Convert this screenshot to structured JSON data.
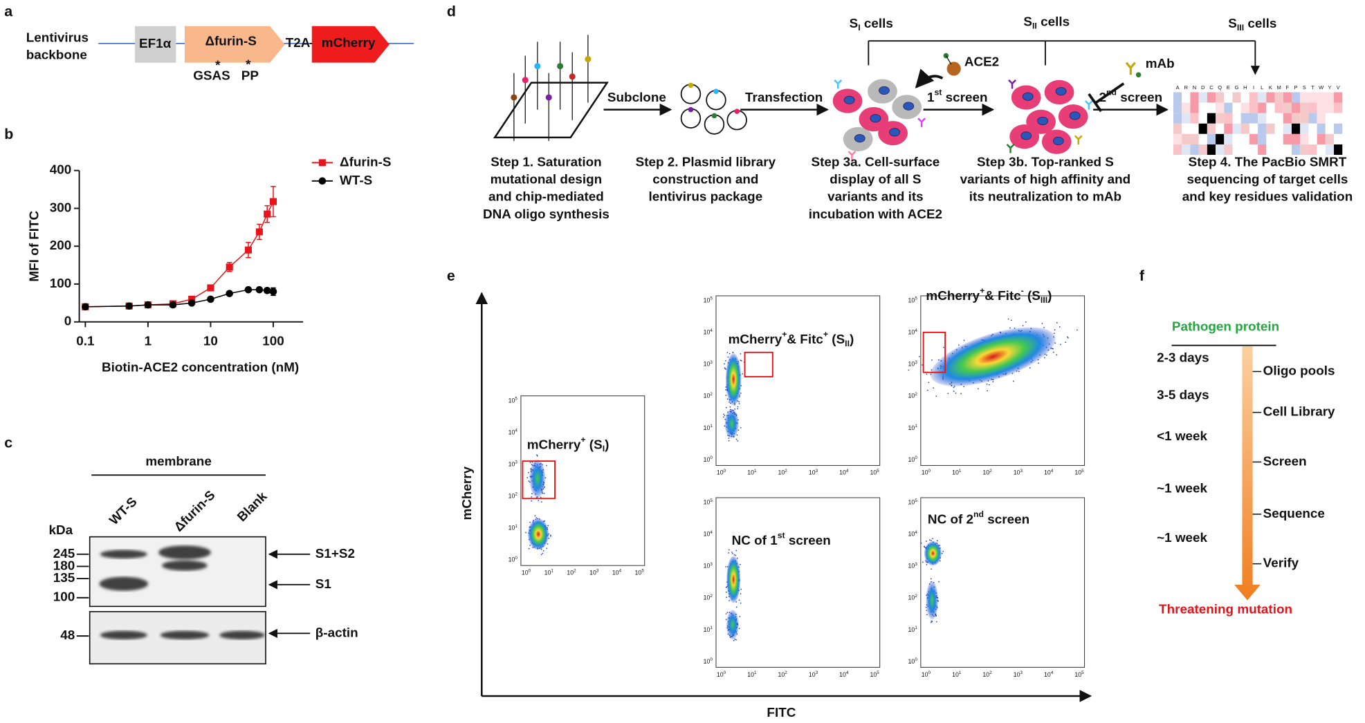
{
  "panel_labels": [
    "a",
    "b",
    "c",
    "d",
    "e",
    "f"
  ],
  "a": {
    "backbone": [
      "Lentivirus",
      "backbone"
    ],
    "ef1a": "EF1α",
    "furin": "Δfurin-S",
    "t2a": "T2A",
    "mcherry": "mCherry",
    "sites": [
      "GSAS",
      "PP"
    ],
    "star": "*"
  },
  "chart_data": {
    "type": "line",
    "xlabel": "Biotin-ACE2 concentration (nM)",
    "ylabel": "MFI of FITC",
    "x": [
      0.1,
      0.5,
      1,
      2.5,
      5,
      10,
      20,
      40,
      60,
      80,
      100
    ],
    "series": [
      {
        "name": "Δfurin-S",
        "color": "#e8141b",
        "marker": "square",
        "values": [
          40,
          42,
          45,
          48,
          60,
          90,
          145,
          190,
          238,
          285,
          318
        ],
        "errors": [
          3,
          3,
          3,
          3,
          4,
          6,
          12,
          20,
          20,
          22,
          40
        ]
      },
      {
        "name": "WT-S",
        "color": "#000000",
        "marker": "circle",
        "values": [
          40,
          42,
          45,
          45,
          50,
          60,
          75,
          85,
          85,
          83,
          80
        ],
        "errors": [
          3,
          3,
          3,
          3,
          3,
          4,
          5,
          5,
          5,
          6,
          10
        ]
      }
    ],
    "xlim": [
      0.08,
      300
    ],
    "ylim": [
      0,
      400
    ],
    "xticks": [
      0.1,
      1,
      10,
      100
    ],
    "yticks": [
      0,
      100,
      200,
      300,
      400
    ],
    "log_x": true,
    "legend": "upper left"
  },
  "c": {
    "membrane": "membrane",
    "lanes": [
      "WT-S",
      "Δfurin-S",
      "Blank"
    ],
    "kda": "kDa",
    "markers": [
      "245",
      "180",
      "135",
      "100"
    ],
    "actin_marker": "48",
    "bands": [
      "S1+S2",
      "S1",
      "β-actin"
    ]
  },
  "d": {
    "cells": [
      [
        {
          "text": "S"
        },
        {
          "text": "I",
          "pos": "sub"
        },
        {
          "text": " cells"
        }
      ],
      [
        {
          "text": "S"
        },
        {
          "text": "II",
          "pos": "sub"
        },
        {
          "text": " cells"
        }
      ],
      [
        {
          "text": "S"
        },
        {
          "text": "III",
          "pos": "sub"
        },
        {
          "text": " cells"
        }
      ]
    ],
    "arrows": [
      "Subclone",
      "Transfection"
    ],
    "screens": [
      [
        {
          "text": "1"
        },
        {
          "text": "st",
          "pos": "sup"
        },
        {
          "text": " screen"
        }
      ],
      [
        {
          "text": "2"
        },
        {
          "text": "nd",
          "pos": "sup"
        },
        {
          "text": " screen"
        }
      ]
    ],
    "ace2": "ACE2",
    "mab": "mAb",
    "heatmap_header": [
      "A",
      "R",
      "N",
      "D",
      "C",
      "Q",
      "E",
      "G",
      "H",
      "I",
      "L",
      "K",
      "M",
      "F",
      "P",
      "S",
      "T",
      "W",
      "Y",
      "V"
    ],
    "steps": [
      [
        "Step 1. Saturation",
        "mutational design",
        "and chip-mediated",
        "DNA oligo synthesis"
      ],
      [
        "Step 2. Plasmid library",
        "construction and",
        "lentivirus package"
      ],
      [
        "Step 3a. Cell-surface",
        "display of all S",
        "variants and its",
        "incubation with ACE2"
      ],
      [
        "Step 3b. Top-ranked S",
        "variants of high affinity and",
        "its neutralization to mAb"
      ],
      [
        "Step 4. The PacBio SMRT",
        "sequencing of target cells",
        "and key residues validation"
      ]
    ]
  },
  "e": {
    "ylabel": "mCherry",
    "xlabel": "FITC",
    "tick_base": "10",
    "tick_exps": [
      "0",
      "1",
      "2",
      "3",
      "4",
      "5"
    ],
    "plots": [
      [
        {
          "text": "mCherry"
        },
        {
          "text": "+",
          "pos": "sup"
        },
        {
          "text": " (S"
        },
        {
          "text": "I",
          "pos": "sub"
        },
        {
          "text": ")"
        }
      ],
      [
        {
          "text": "mCherry"
        },
        {
          "text": "+",
          "pos": "sup"
        },
        {
          "text": "& Fitc"
        },
        {
          "text": "+",
          "pos": "sup"
        },
        {
          "text": " (S"
        },
        {
          "text": "II",
          "pos": "sub"
        },
        {
          "text": ")"
        }
      ],
      [
        {
          "text": "mCherry"
        },
        {
          "text": "+",
          "pos": "sup"
        },
        {
          "text": "& Fitc"
        },
        {
          "text": "-",
          "pos": "sup"
        },
        {
          "text": " (S"
        },
        {
          "text": "III",
          "pos": "sub"
        },
        {
          "text": ")"
        }
      ],
      [
        {
          "text": "NC of 1"
        },
        {
          "text": "st",
          "pos": "sup"
        },
        {
          "text": " screen"
        }
      ],
      [
        {
          "text": "NC of 2"
        },
        {
          "text": "nd",
          "pos": "sup"
        },
        {
          "text": " screen"
        }
      ]
    ]
  },
  "f": {
    "top": "Pathogen protein",
    "bottom": "Threatening mutation",
    "stages": [
      "Oligo pools",
      "Cell Library",
      "Screen",
      "Sequence",
      "Verify"
    ],
    "durations": [
      "2-3 days",
      "3-5 days",
      "<1 week",
      "~1 week",
      "~1 week"
    ]
  }
}
